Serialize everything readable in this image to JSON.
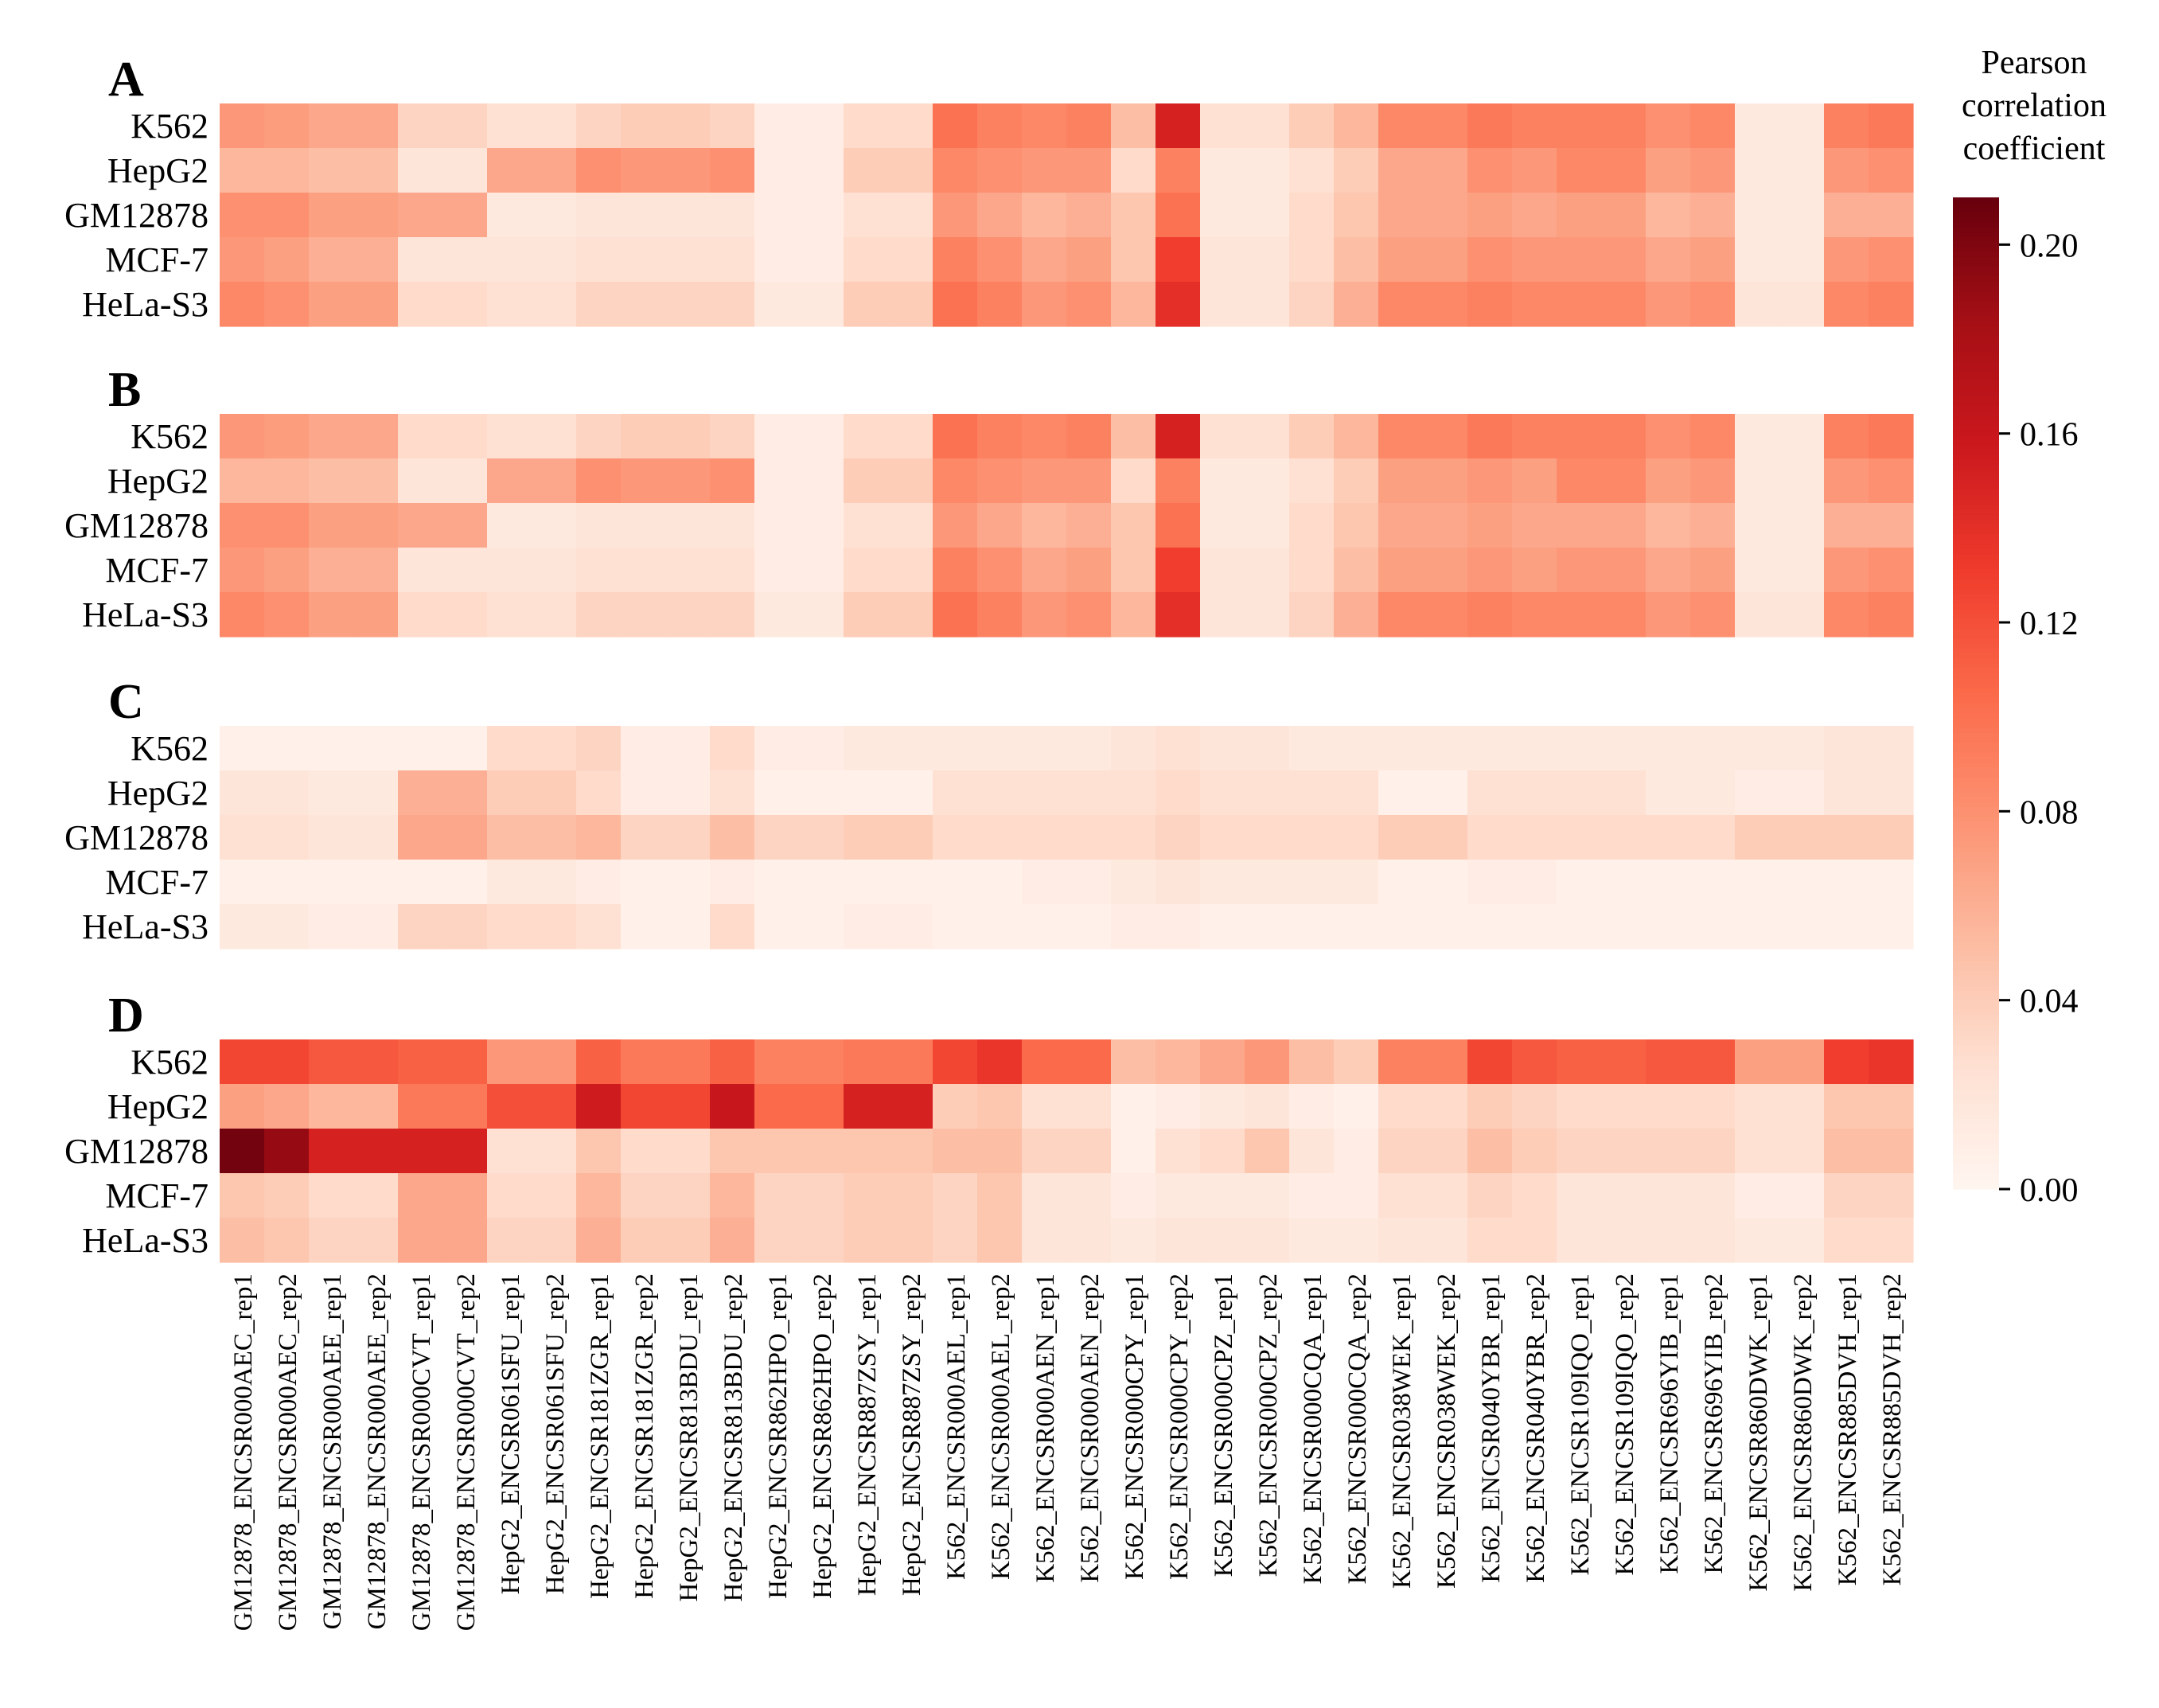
{
  "colorbar": {
    "title_lines": [
      "Pearson",
      "correlation",
      "coefficient"
    ],
    "min": 0.0,
    "max": 0.21,
    "ticks": [
      {
        "value": 0.2,
        "label": "0.20"
      },
      {
        "value": 0.16,
        "label": "0.16"
      },
      {
        "value": 0.12,
        "label": "0.12"
      },
      {
        "value": 0.08,
        "label": "0.08"
      },
      {
        "value": 0.04,
        "label": "0.04"
      },
      {
        "value": 0.0,
        "label": "0.00"
      }
    ],
    "colormap": "Reds"
  },
  "chart_data": {
    "type": "heatmap",
    "rows": [
      "K562",
      "HepG2",
      "GM12878",
      "MCF-7",
      "HeLa-S3"
    ],
    "columns": [
      "GM12878_ENCSR000AEC_rep1",
      "GM12878_ENCSR000AEC_rep2",
      "GM12878_ENCSR000AEE_rep1",
      "GM12878_ENCSR000AEE_rep2",
      "GM12878_ENCSR000CVT_rep1",
      "GM12878_ENCSR000CVT_rep2",
      "HepG2_ENCSR061SFU_rep1",
      "HepG2_ENCSR061SFU_rep2",
      "HepG2_ENCSR181ZGR_rep1",
      "HepG2_ENCSR181ZGR_rep2",
      "HepG2_ENCSR813BDU_rep1",
      "HepG2_ENCSR813BDU_rep2",
      "HepG2_ENCSR862HPO_rep1",
      "HepG2_ENCSR862HPO_rep2",
      "HepG2_ENCSR887ZSY_rep1",
      "HepG2_ENCSR887ZSY_rep2",
      "K562_ENCSR000AEL_rep1",
      "K562_ENCSR000AEL_rep2",
      "K562_ENCSR000AEN_rep1",
      "K562_ENCSR000AEN_rep2",
      "K562_ENCSR000CPY_rep1",
      "K562_ENCSR000CPY_rep2",
      "K562_ENCSR000CPZ_rep1",
      "K562_ENCSR000CPZ_rep2",
      "K562_ENCSR000CQA_rep1",
      "K562_ENCSR000CQA_rep2",
      "K562_ENCSR038WEK_rep1",
      "K562_ENCSR038WEK_rep2",
      "K562_ENCSR040YBR_rep1",
      "K562_ENCSR040YBR_rep2",
      "K562_ENCSR109IQO_rep1",
      "K562_ENCSR109IQO_rep2",
      "K562_ENCSR696YIB_rep1",
      "K562_ENCSR696YIB_rep2",
      "K562_ENCSR860DWK_rep1",
      "K562_ENCSR860DWK_rep2",
      "K562_ENCSR885DVH_rep1",
      "K562_ENCSR885DVH_rep2"
    ],
    "panels": [
      {
        "label": "A",
        "values": [
          [
            0.075,
            0.072,
            0.065,
            0.065,
            0.035,
            0.035,
            0.025,
            0.025,
            0.035,
            0.04,
            0.04,
            0.035,
            0.01,
            0.01,
            0.03,
            0.03,
            0.1,
            0.09,
            0.085,
            0.09,
            0.05,
            0.15,
            0.025,
            0.025,
            0.04,
            0.055,
            0.085,
            0.085,
            0.095,
            0.09,
            0.09,
            0.09,
            0.08,
            0.085,
            0.015,
            0.015,
            0.09,
            0.095
          ],
          [
            0.055,
            0.055,
            0.05,
            0.05,
            0.02,
            0.02,
            0.065,
            0.065,
            0.08,
            0.075,
            0.075,
            0.08,
            0.01,
            0.01,
            0.04,
            0.04,
            0.085,
            0.08,
            0.075,
            0.075,
            0.03,
            0.09,
            0.015,
            0.015,
            0.025,
            0.04,
            0.065,
            0.065,
            0.08,
            0.075,
            0.085,
            0.085,
            0.07,
            0.075,
            0.015,
            0.015,
            0.075,
            0.08
          ],
          [
            0.08,
            0.08,
            0.07,
            0.07,
            0.065,
            0.065,
            0.015,
            0.015,
            0.02,
            0.02,
            0.02,
            0.02,
            0.01,
            0.01,
            0.025,
            0.025,
            0.075,
            0.065,
            0.055,
            0.06,
            0.045,
            0.1,
            0.015,
            0.015,
            0.03,
            0.045,
            0.065,
            0.065,
            0.07,
            0.065,
            0.07,
            0.07,
            0.055,
            0.06,
            0.015,
            0.015,
            0.06,
            0.06
          ],
          [
            0.075,
            0.07,
            0.06,
            0.06,
            0.02,
            0.02,
            0.02,
            0.02,
            0.025,
            0.025,
            0.025,
            0.025,
            0.01,
            0.01,
            0.03,
            0.03,
            0.09,
            0.08,
            0.065,
            0.07,
            0.045,
            0.13,
            0.02,
            0.02,
            0.03,
            0.05,
            0.07,
            0.07,
            0.08,
            0.075,
            0.075,
            0.075,
            0.065,
            0.07,
            0.015,
            0.015,
            0.075,
            0.08
          ],
          [
            0.085,
            0.08,
            0.07,
            0.07,
            0.03,
            0.03,
            0.025,
            0.025,
            0.035,
            0.035,
            0.035,
            0.035,
            0.015,
            0.015,
            0.04,
            0.04,
            0.1,
            0.09,
            0.075,
            0.08,
            0.055,
            0.14,
            0.02,
            0.02,
            0.035,
            0.06,
            0.085,
            0.085,
            0.09,
            0.085,
            0.085,
            0.085,
            0.075,
            0.08,
            0.02,
            0.02,
            0.085,
            0.09
          ]
        ]
      },
      {
        "label": "B",
        "values": [
          [
            0.075,
            0.072,
            0.065,
            0.065,
            0.03,
            0.03,
            0.025,
            0.025,
            0.035,
            0.04,
            0.04,
            0.035,
            0.01,
            0.01,
            0.03,
            0.03,
            0.1,
            0.09,
            0.085,
            0.09,
            0.05,
            0.15,
            0.025,
            0.025,
            0.04,
            0.055,
            0.085,
            0.085,
            0.095,
            0.09,
            0.09,
            0.09,
            0.08,
            0.085,
            0.015,
            0.015,
            0.09,
            0.095
          ],
          [
            0.055,
            0.055,
            0.05,
            0.05,
            0.02,
            0.02,
            0.065,
            0.065,
            0.08,
            0.075,
            0.075,
            0.08,
            0.01,
            0.01,
            0.04,
            0.04,
            0.085,
            0.08,
            0.075,
            0.075,
            0.03,
            0.09,
            0.015,
            0.015,
            0.025,
            0.04,
            0.07,
            0.07,
            0.075,
            0.07,
            0.085,
            0.085,
            0.07,
            0.075,
            0.015,
            0.015,
            0.075,
            0.08
          ],
          [
            0.08,
            0.08,
            0.07,
            0.07,
            0.065,
            0.065,
            0.015,
            0.015,
            0.02,
            0.02,
            0.02,
            0.02,
            0.01,
            0.01,
            0.025,
            0.025,
            0.075,
            0.065,
            0.055,
            0.06,
            0.045,
            0.1,
            0.015,
            0.015,
            0.03,
            0.045,
            0.065,
            0.065,
            0.07,
            0.065,
            0.065,
            0.065,
            0.055,
            0.06,
            0.015,
            0.015,
            0.06,
            0.06
          ],
          [
            0.075,
            0.07,
            0.06,
            0.06,
            0.02,
            0.02,
            0.02,
            0.02,
            0.025,
            0.025,
            0.025,
            0.025,
            0.01,
            0.01,
            0.03,
            0.03,
            0.09,
            0.08,
            0.065,
            0.07,
            0.045,
            0.13,
            0.02,
            0.02,
            0.03,
            0.05,
            0.07,
            0.07,
            0.075,
            0.07,
            0.075,
            0.075,
            0.065,
            0.07,
            0.015,
            0.015,
            0.075,
            0.08
          ],
          [
            0.085,
            0.08,
            0.07,
            0.07,
            0.03,
            0.03,
            0.025,
            0.025,
            0.035,
            0.035,
            0.035,
            0.035,
            0.015,
            0.015,
            0.04,
            0.04,
            0.1,
            0.09,
            0.075,
            0.08,
            0.055,
            0.14,
            0.02,
            0.02,
            0.035,
            0.06,
            0.085,
            0.085,
            0.09,
            0.085,
            0.085,
            0.085,
            0.075,
            0.08,
            0.02,
            0.02,
            0.085,
            0.09
          ]
        ]
      },
      {
        "label": "C",
        "values": [
          [
            0.005,
            0.005,
            0.005,
            0.005,
            0.005,
            0.005,
            0.03,
            0.03,
            0.035,
            0.01,
            0.01,
            0.03,
            0.01,
            0.01,
            0.015,
            0.015,
            0.015,
            0.015,
            0.015,
            0.015,
            0.02,
            0.025,
            0.02,
            0.02,
            0.015,
            0.015,
            0.015,
            0.015,
            0.015,
            0.015,
            0.015,
            0.015,
            0.015,
            0.015,
            0.015,
            0.015,
            0.02,
            0.02
          ],
          [
            0.02,
            0.02,
            0.015,
            0.015,
            0.06,
            0.06,
            0.04,
            0.04,
            0.03,
            0.01,
            0.01,
            0.025,
            0.005,
            0.005,
            0.005,
            0.005,
            0.025,
            0.025,
            0.025,
            0.025,
            0.025,
            0.03,
            0.025,
            0.025,
            0.025,
            0.025,
            0.005,
            0.005,
            0.025,
            0.025,
            0.025,
            0.025,
            0.015,
            0.015,
            0.01,
            0.01,
            0.02,
            0.02
          ],
          [
            0.025,
            0.025,
            0.02,
            0.02,
            0.065,
            0.065,
            0.05,
            0.05,
            0.055,
            0.035,
            0.035,
            0.05,
            0.035,
            0.035,
            0.04,
            0.04,
            0.03,
            0.03,
            0.03,
            0.03,
            0.03,
            0.035,
            0.03,
            0.03,
            0.03,
            0.03,
            0.04,
            0.04,
            0.03,
            0.03,
            0.03,
            0.03,
            0.03,
            0.03,
            0.04,
            0.04,
            0.04,
            0.04
          ],
          [
            0.005,
            0.005,
            0.005,
            0.005,
            0.005,
            0.005,
            0.015,
            0.015,
            0.01,
            0.005,
            0.005,
            0.01,
            0.005,
            0.005,
            0.005,
            0.005,
            0.005,
            0.005,
            0.01,
            0.01,
            0.015,
            0.02,
            0.015,
            0.015,
            0.015,
            0.015,
            0.005,
            0.005,
            0.01,
            0.01,
            0.005,
            0.005,
            0.005,
            0.005,
            0.005,
            0.005,
            0.005,
            0.005
          ],
          [
            0.015,
            0.015,
            0.01,
            0.01,
            0.035,
            0.035,
            0.03,
            0.03,
            0.025,
            0.005,
            0.005,
            0.03,
            0.005,
            0.005,
            0.01,
            0.01,
            0.005,
            0.005,
            0.005,
            0.005,
            0.01,
            0.01,
            0.005,
            0.005,
            0.005,
            0.005,
            0.005,
            0.005,
            0.005,
            0.005,
            0.005,
            0.005,
            0.005,
            0.005,
            0.005,
            0.005,
            0.005,
            0.005
          ]
        ]
      },
      {
        "label": "D",
        "values": [
          [
            0.125,
            0.125,
            0.115,
            0.115,
            0.11,
            0.11,
            0.075,
            0.075,
            0.11,
            0.095,
            0.095,
            0.11,
            0.09,
            0.09,
            0.095,
            0.095,
            0.125,
            0.135,
            0.105,
            0.105,
            0.05,
            0.055,
            0.065,
            0.075,
            0.05,
            0.04,
            0.09,
            0.09,
            0.125,
            0.115,
            0.11,
            0.11,
            0.115,
            0.115,
            0.07,
            0.07,
            0.13,
            0.135
          ],
          [
            0.07,
            0.065,
            0.055,
            0.055,
            0.095,
            0.095,
            0.12,
            0.12,
            0.155,
            0.125,
            0.125,
            0.16,
            0.105,
            0.105,
            0.15,
            0.15,
            0.04,
            0.045,
            0.025,
            0.025,
            0.005,
            0.01,
            0.015,
            0.02,
            0.01,
            0.005,
            0.03,
            0.03,
            0.04,
            0.035,
            0.03,
            0.03,
            0.03,
            0.03,
            0.025,
            0.025,
            0.045,
            0.045
          ],
          [
            0.205,
            0.19,
            0.15,
            0.15,
            0.15,
            0.15,
            0.025,
            0.025,
            0.045,
            0.03,
            0.03,
            0.045,
            0.045,
            0.045,
            0.045,
            0.045,
            0.05,
            0.05,
            0.035,
            0.035,
            0.005,
            0.025,
            0.03,
            0.045,
            0.02,
            0.01,
            0.035,
            0.035,
            0.05,
            0.04,
            0.035,
            0.035,
            0.035,
            0.035,
            0.025,
            0.025,
            0.05,
            0.05
          ],
          [
            0.045,
            0.04,
            0.03,
            0.03,
            0.065,
            0.065,
            0.03,
            0.03,
            0.055,
            0.035,
            0.035,
            0.055,
            0.035,
            0.035,
            0.04,
            0.04,
            0.035,
            0.045,
            0.02,
            0.02,
            0.01,
            0.015,
            0.015,
            0.015,
            0.01,
            0.01,
            0.025,
            0.025,
            0.035,
            0.03,
            0.02,
            0.02,
            0.02,
            0.02,
            0.01,
            0.01,
            0.035,
            0.035
          ],
          [
            0.05,
            0.045,
            0.035,
            0.035,
            0.065,
            0.065,
            0.035,
            0.035,
            0.06,
            0.04,
            0.04,
            0.06,
            0.035,
            0.035,
            0.04,
            0.04,
            0.035,
            0.045,
            0.02,
            0.02,
            0.015,
            0.02,
            0.02,
            0.02,
            0.015,
            0.015,
            0.02,
            0.02,
            0.03,
            0.03,
            0.02,
            0.02,
            0.02,
            0.02,
            0.015,
            0.015,
            0.03,
            0.03
          ]
        ]
      }
    ]
  }
}
